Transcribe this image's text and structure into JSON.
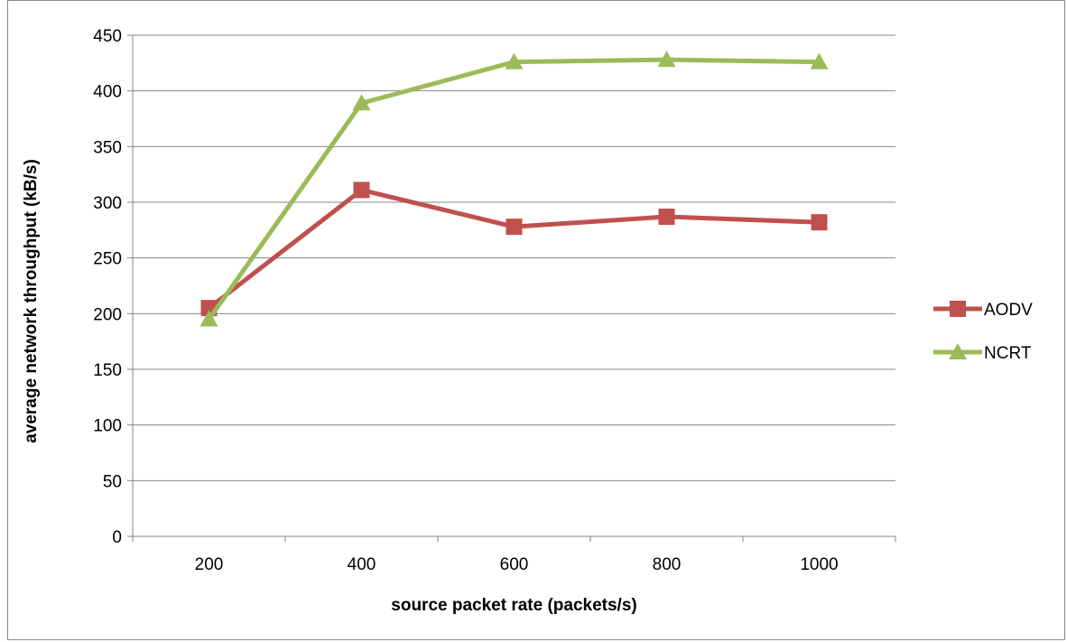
{
  "chart_data": {
    "type": "line",
    "title": "",
    "xlabel": "source packet rate (packets/s)",
    "ylabel": "average network throughput (kB/s)",
    "categories": [
      "200",
      "400",
      "600",
      "800",
      "1000"
    ],
    "ylim": [
      0,
      450
    ],
    "yticks": [
      0,
      50,
      100,
      150,
      200,
      250,
      300,
      350,
      400,
      450
    ],
    "grid": true,
    "legend_position": "right",
    "series": [
      {
        "name": "AODV",
        "values": [
          205,
          311,
          278,
          287,
          282
        ],
        "color": "#c0504d",
        "marker": "square"
      },
      {
        "name": "NCRT",
        "values": [
          195,
          389,
          426,
          428,
          426
        ],
        "color": "#9bbb59",
        "marker": "triangle"
      }
    ]
  }
}
